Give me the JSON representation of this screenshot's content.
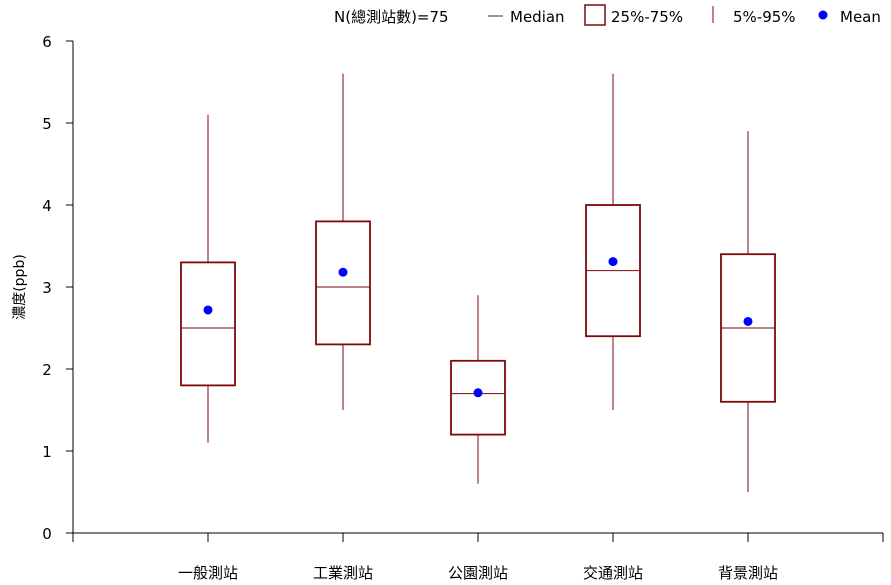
{
  "chart_data": {
    "type": "box",
    "title": "",
    "xlabel": "",
    "ylabel": "濃度(ppb)",
    "ylim": [
      0,
      6
    ],
    "yticks": [
      0,
      1,
      2,
      3,
      4,
      5,
      6
    ],
    "grid": false,
    "legend_position": "top-right",
    "legend": {
      "n_label": "N(總測站數)=75",
      "median": "Median",
      "iqr": "25%-75%",
      "whisker": "5%-95%",
      "mean": "Mean"
    },
    "colors": {
      "box": "#7a0a0a",
      "mean": "#0000ff"
    },
    "categories": [
      "一般測站",
      "工業測站",
      "公園測站",
      "交通測站",
      "背景測站"
    ],
    "boxes": [
      {
        "category": "一般測站",
        "p5": 1.1,
        "q1": 1.8,
        "median": 2.5,
        "q3": 3.3,
        "p95": 5.1,
        "mean": 2.72
      },
      {
        "category": "工業測站",
        "p5": 1.5,
        "q1": 2.3,
        "median": 3.0,
        "q3": 3.8,
        "p95": 5.6,
        "mean": 3.18
      },
      {
        "category": "公園測站",
        "p5": 0.6,
        "q1": 1.2,
        "median": 1.7,
        "q3": 2.1,
        "p95": 2.9,
        "mean": 1.71
      },
      {
        "category": "交通測站",
        "p5": 1.5,
        "q1": 2.4,
        "median": 3.2,
        "q3": 4.0,
        "p95": 5.6,
        "mean": 3.31
      },
      {
        "category": "背景測站",
        "p5": 0.5,
        "q1": 1.6,
        "median": 2.5,
        "q3": 3.4,
        "p95": 4.9,
        "mean": 2.58
      }
    ]
  }
}
